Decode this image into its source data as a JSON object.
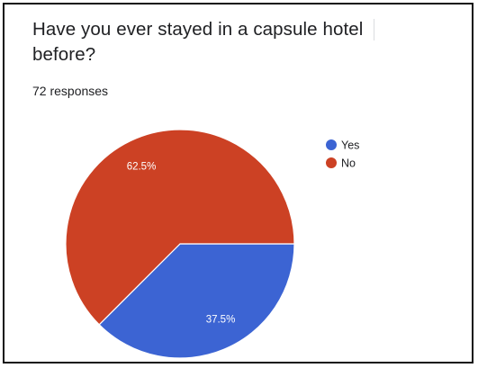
{
  "card": {
    "title": "Have you ever stayed in a capsule hotel before?",
    "responses": "72 responses"
  },
  "chart_data": {
    "type": "pie",
    "title": "Have you ever stayed in a capsule hotel before?",
    "total_responses": 72,
    "legend_position": "top-right",
    "slices": [
      {
        "label": "Yes",
        "value": 37.5,
        "display": "37.5%",
        "color": "#3c64d3"
      },
      {
        "label": "No",
        "value": 62.5,
        "display": "62.5%",
        "color": "#cc4124"
      }
    ]
  }
}
